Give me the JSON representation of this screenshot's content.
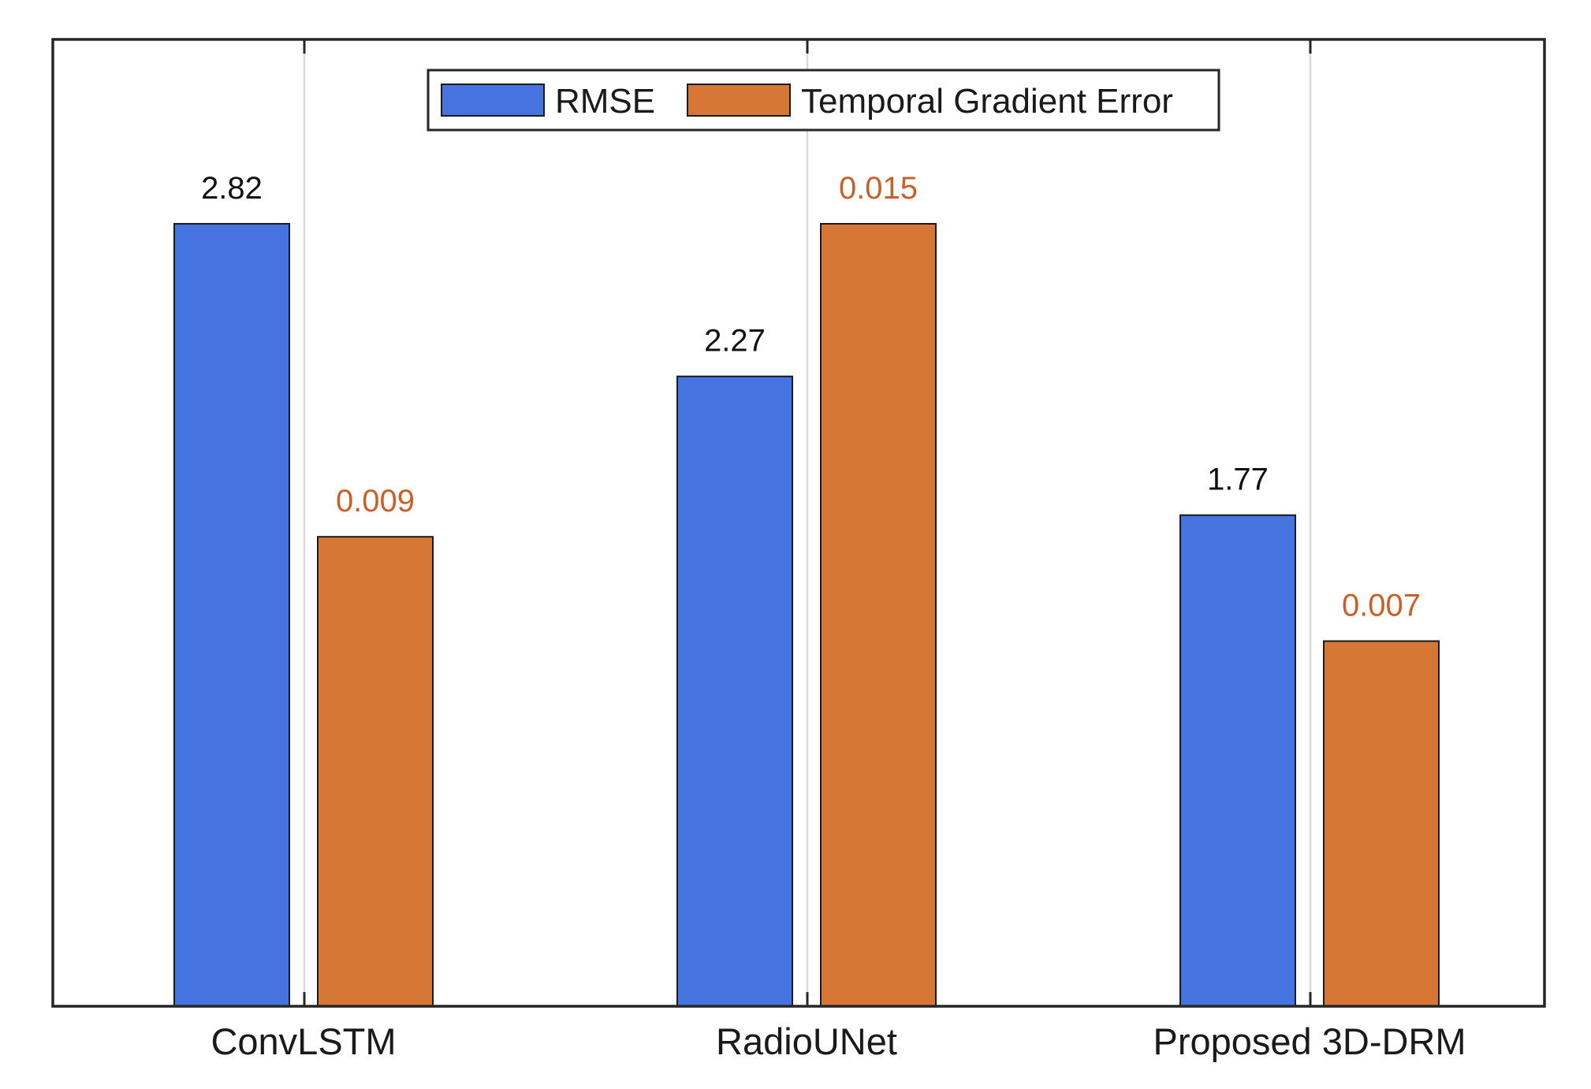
{
  "chart_data": {
    "type": "bar",
    "title": "",
    "xlabel": "",
    "ylabel": "",
    "categories": [
      "ConvLSTM",
      "RadioUNet",
      "Proposed 3D-DRM"
    ],
    "series": [
      {
        "name": "RMSE",
        "color": "#4573DF",
        "label_color": "#111111",
        "values": [
          2.82,
          2.27,
          1.77
        ],
        "value_labels": [
          "2.82",
          "2.27",
          "1.77"
        ]
      },
      {
        "name": "Temporal Gradient Error",
        "color": "#D67736",
        "label_color": "#C8602A",
        "values": [
          0.009,
          0.015,
          0.007
        ],
        "value_labels": [
          "0.009",
          "0.015",
          "0.007"
        ]
      }
    ],
    "legend_position": "top-center",
    "grid": "vertical separators between groups",
    "y_axis_visible": false
  }
}
